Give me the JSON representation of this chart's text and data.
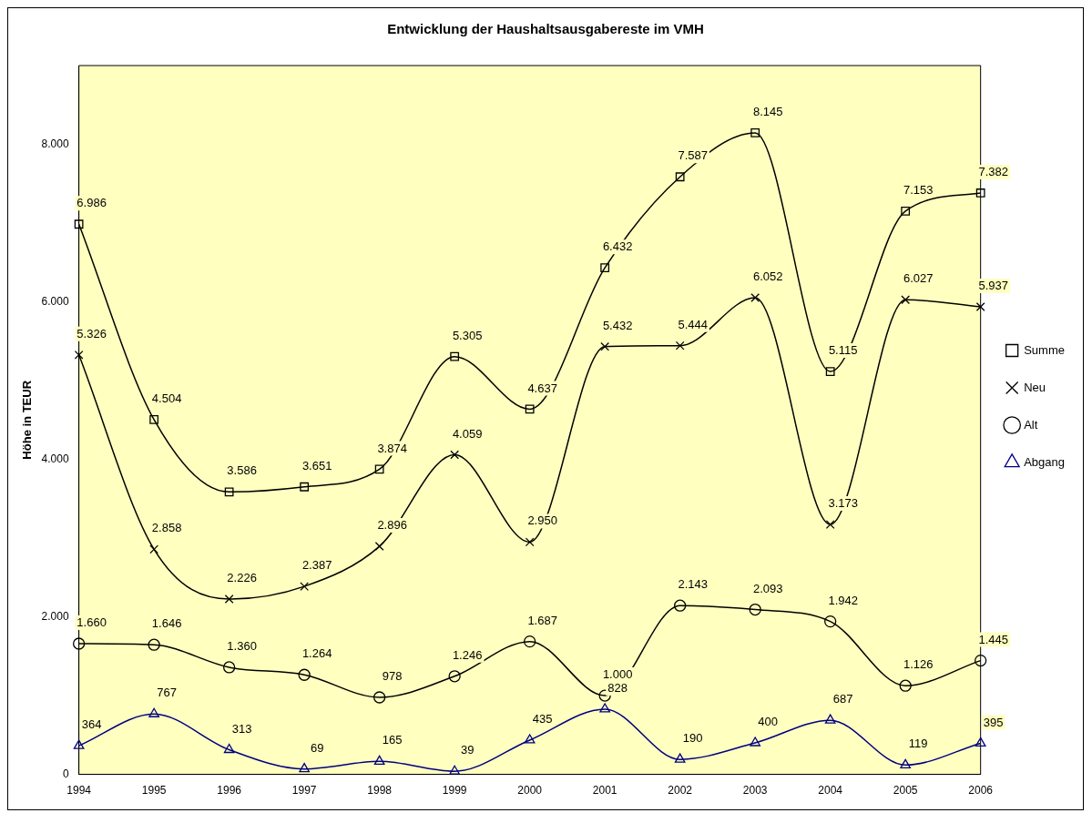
{
  "chart_data": {
    "type": "line",
    "title": "Entwicklung der Haushaltsausgabereste im VMH",
    "ylabel": "Höhe in TEUR",
    "categories": [
      "1994",
      "1995",
      "1996",
      "1997",
      "1998",
      "1999",
      "2000",
      "2001",
      "2002",
      "2003",
      "2004",
      "2005",
      "2006"
    ],
    "ylim": [
      0,
      9000
    ],
    "yticks": [
      {
        "value": 0,
        "label": "0"
      },
      {
        "value": 2000,
        "label": "2.000"
      },
      {
        "value": 4000,
        "label": "4.000"
      },
      {
        "value": 6000,
        "label": "6.000"
      },
      {
        "value": 8000,
        "label": "8.000"
      }
    ],
    "grid": false,
    "legend": "right",
    "line_style": "solid",
    "series": [
      {
        "name": "Summe",
        "color": "#000000",
        "marker": "square",
        "values": [
          6986,
          4504,
          3586,
          3651,
          3874,
          5305,
          4637,
          6432,
          7587,
          8145,
          5115,
          7153,
          7382
        ],
        "value_labels": [
          "6.986",
          "4.504",
          "3.586",
          "3.651",
          "3.874",
          "5.305",
          "4.637",
          "6.432",
          "7.587",
          "8.145",
          "5.115",
          "7.153",
          "7.382"
        ]
      },
      {
        "name": "Neu",
        "color": "#000000",
        "marker": "cross",
        "values": [
          5326,
          2858,
          2226,
          2387,
          2896,
          4059,
          2950,
          5432,
          5444,
          6052,
          3173,
          6027,
          5937
        ],
        "value_labels": [
          "5.326",
          "2.858",
          "2.226",
          "2.387",
          "2.896",
          "4.059",
          "2.950",
          "5.432",
          "5.444",
          "6.052",
          "3.173",
          "6.027",
          "5.937"
        ]
      },
      {
        "name": "Alt",
        "color": "#000000",
        "marker": "circle",
        "values": [
          1660,
          1646,
          1360,
          1264,
          978,
          1246,
          1687,
          1000,
          2143,
          2093,
          1942,
          1126,
          1445
        ],
        "value_labels": [
          "1.660",
          "1.646",
          "1.360",
          "1.264",
          "978",
          "1.246",
          "1.687",
          "1.000",
          "2.143",
          "2.093",
          "1.942",
          "1.126",
          "1.445"
        ]
      },
      {
        "name": "Abgang",
        "color": "#000080",
        "marker": "triangle",
        "values": [
          364,
          767,
          313,
          69,
          165,
          39,
          435,
          828,
          190,
          400,
          687,
          119,
          395
        ],
        "value_labels": [
          "364",
          "767",
          "313",
          "69",
          "165",
          "39",
          "435",
          "828",
          "190",
          "400",
          "687",
          "119",
          "395"
        ]
      }
    ]
  }
}
